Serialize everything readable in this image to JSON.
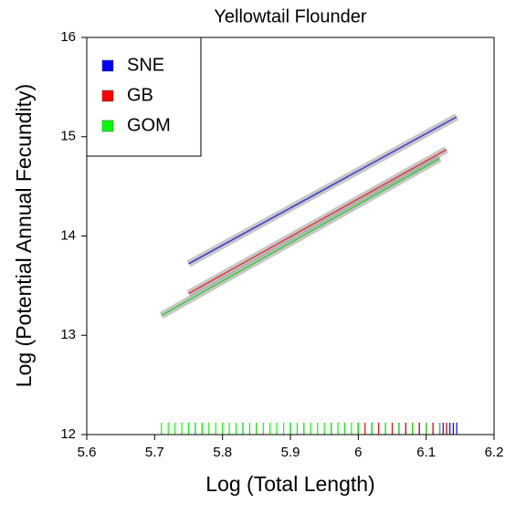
{
  "chart_data": {
    "type": "line",
    "title": "Yellowtail Flounder",
    "x_label": "Log (Total Length)",
    "y_label": "Log (Potential Annual Fecundity)",
    "xlim": [
      5.6,
      6.2
    ],
    "xticks": [
      5.6,
      5.7,
      5.8,
      5.9,
      6.0,
      6.1,
      6.2
    ],
    "ylim": [
      12,
      16
    ],
    "yticks": [
      12,
      13,
      14,
      15,
      16
    ],
    "legend_position": "upper-left",
    "series": [
      {
        "name": "SNE",
        "color": "#3b3bd0",
        "legend_color": "#0000ff",
        "x": [
          5.75,
          6.145
        ],
        "values": [
          13.72,
          15.2
        ],
        "rug_x": [
          5.76,
          5.83,
          5.9,
          5.96,
          6.0,
          6.02,
          6.04,
          6.06,
          6.07,
          6.08,
          6.09,
          6.1,
          6.11,
          6.12,
          6.125,
          6.13,
          6.135,
          6.14,
          6.145
        ]
      },
      {
        "name": "GB",
        "color": "#e03a3a",
        "legend_color": "#ff0000",
        "x": [
          5.75,
          6.13
        ],
        "values": [
          13.42,
          14.87
        ],
        "rug_x": [
          5.77,
          5.85,
          5.92,
          5.96,
          5.98,
          6.0,
          6.01,
          6.03,
          6.05,
          6.06,
          6.07,
          6.08,
          6.09,
          6.1,
          6.11,
          6.12,
          6.13
        ]
      },
      {
        "name": "GOM",
        "color": "#3ccc3c",
        "legend_color": "#00ff00",
        "x": [
          5.71,
          6.12
        ],
        "values": [
          13.2,
          14.78
        ],
        "rug_x": [
          5.71,
          5.72,
          5.73,
          5.74,
          5.75,
          5.76,
          5.77,
          5.78,
          5.79,
          5.8,
          5.81,
          5.82,
          5.83,
          5.84,
          5.85,
          5.86,
          5.87,
          5.88,
          5.89,
          5.9,
          5.91,
          5.92,
          5.93,
          5.94,
          5.95,
          5.96,
          5.97,
          5.98,
          5.99,
          6.0,
          6.02,
          6.04,
          6.06,
          6.08,
          6.1,
          6.12
        ]
      }
    ]
  }
}
